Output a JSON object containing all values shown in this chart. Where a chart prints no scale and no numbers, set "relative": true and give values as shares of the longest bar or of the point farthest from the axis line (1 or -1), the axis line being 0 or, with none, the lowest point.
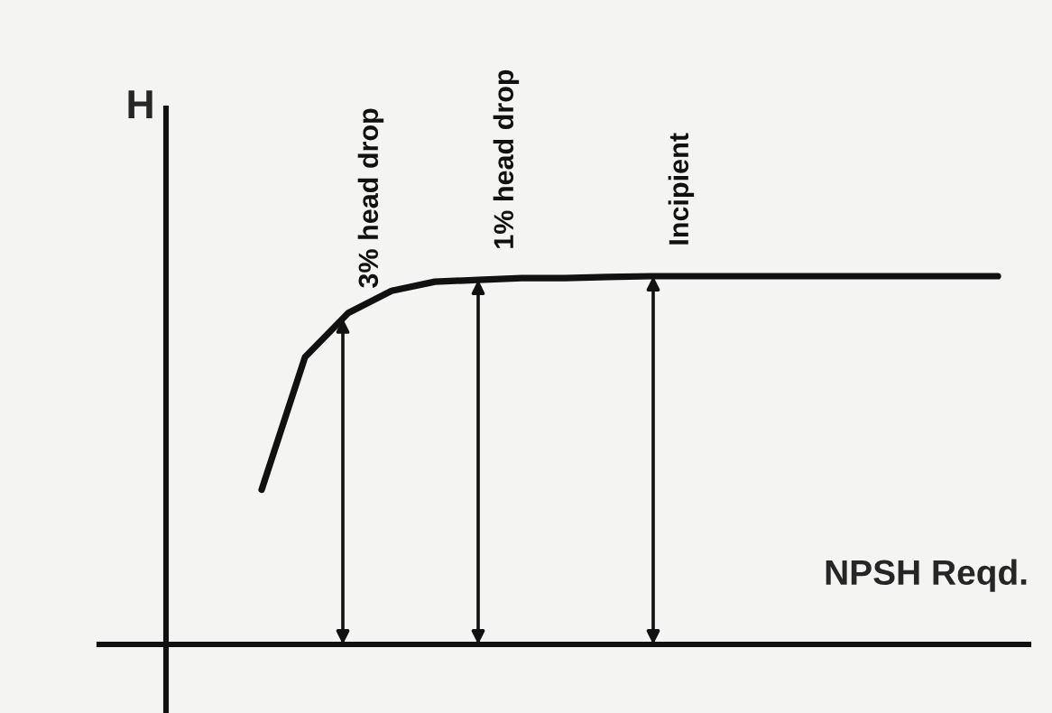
{
  "chart_data": {
    "type": "line",
    "relative": true,
    "xlabel": "NPSH Reqd.",
    "ylabel": "H",
    "categories": [
      null,
      null,
      null,
      null,
      null,
      null,
      null,
      null,
      null,
      null,
      null,
      null,
      null,
      null,
      null,
      null,
      null,
      null
    ],
    "series": [
      {
        "color": "#111111",
        "values": [
          0.42,
          0.78,
          0.9,
          0.96,
          0.985,
          0.99,
          0.995,
          0.995,
          0.998,
          1.0,
          1.0,
          1.0,
          1.0,
          1.0,
          1.0,
          1.0,
          1.0,
          1.0
        ]
      }
    ],
    "annotations": [
      "3% head drop",
      "1% head drop",
      "Incipient"
    ],
    "grid": false,
    "legend": false,
    "marker": "none",
    "line_style": "solid"
  }
}
